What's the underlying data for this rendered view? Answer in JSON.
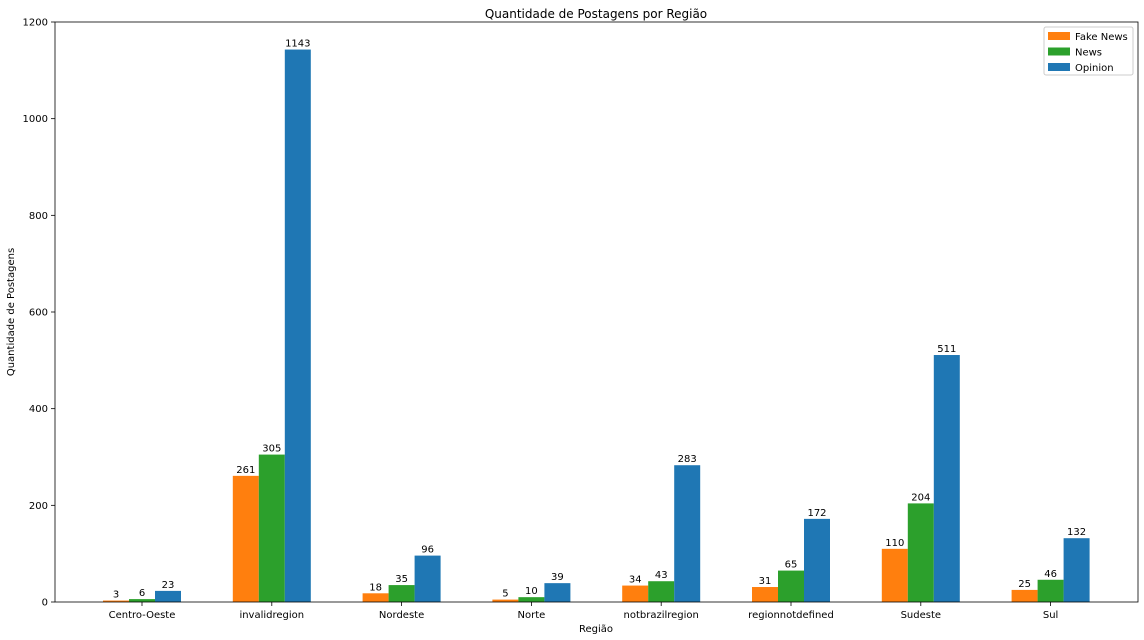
{
  "chart_data": {
    "type": "bar",
    "title": "Quantidade de Postagens por Região",
    "xlabel": "Região",
    "ylabel": "Quantidade de Postagens",
    "ylim": [
      0,
      1200
    ],
    "yticks": [
      0,
      200,
      400,
      600,
      800,
      1000,
      1200
    ],
    "categories": [
      "Centro-Oeste",
      "invalidregion",
      "Nordeste",
      "Norte",
      "notbrazilregion",
      "regionnotdefined",
      "Sudeste",
      "Sul"
    ],
    "series": [
      {
        "name": "Fake News",
        "color": "#ff7f0e",
        "values": [
          3,
          261,
          18,
          5,
          34,
          31,
          110,
          25
        ]
      },
      {
        "name": "News",
        "color": "#2ca02c",
        "values": [
          6,
          305,
          35,
          10,
          43,
          65,
          204,
          46
        ]
      },
      {
        "name": "Opinion",
        "color": "#1f77b4",
        "values": [
          23,
          1143,
          96,
          39,
          283,
          172,
          511,
          132
        ]
      }
    ],
    "legend_position": "top-right",
    "grid": false
  }
}
